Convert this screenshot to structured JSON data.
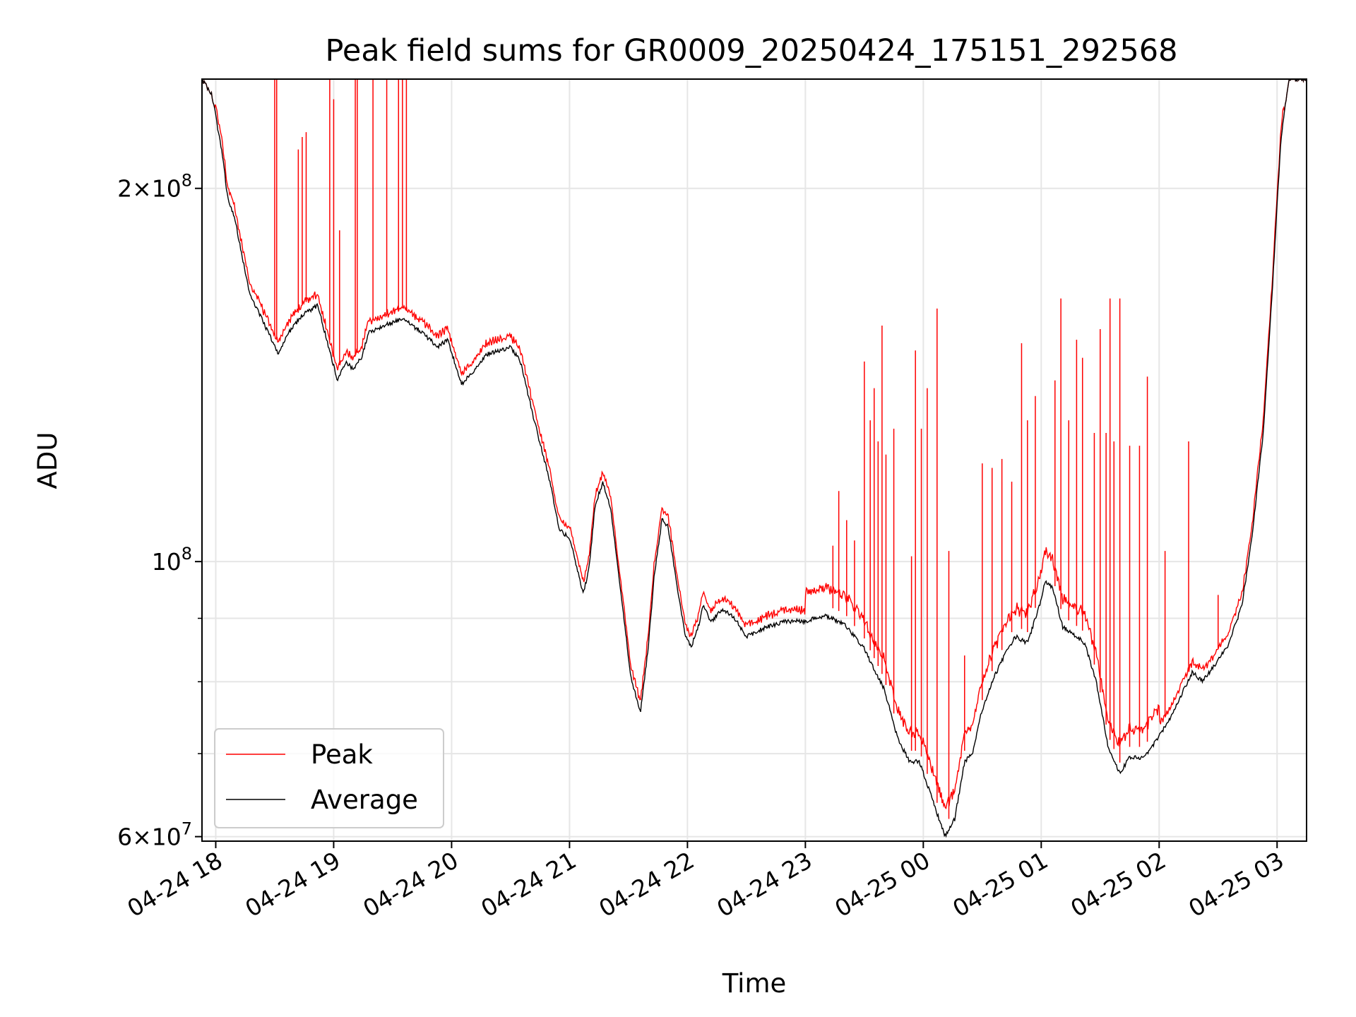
{
  "chart_data": {
    "type": "line",
    "title": "Peak field sums for GR0009_20250424_175151_292568",
    "xlabel": "Time",
    "ylabel": "ADU",
    "yscale": "log",
    "grid": true,
    "legend_loc": "lower left",
    "xlim": [
      "2025-04-24 17:53",
      "2025-04-25 03:15"
    ],
    "ylim": [
      59500000,
      245000000
    ],
    "x_ticks": [
      "04-24 18",
      "04-24 19",
      "04-24 20",
      "04-24 21",
      "04-24 22",
      "04-24 23",
      "04-25 00",
      "04-25 01",
      "04-25 02",
      "04-25 03"
    ],
    "y_tick_labels": [
      {
        "value": 60000000,
        "mantissa": "6",
        "base": "10",
        "exponent": "7"
      },
      {
        "value": 100000000,
        "mantissa": "",
        "base": "10",
        "exponent": "8"
      },
      {
        "value": 200000000,
        "mantissa": "2",
        "base": "10",
        "exponent": "8"
      }
    ],
    "y_minor_ticks": [
      70000000,
      80000000,
      90000000
    ],
    "colors": {
      "peak": "#ff0000",
      "average": "#000000"
    },
    "series": [
      {
        "name": "Average",
        "color": "#000000",
        "points": [
          [
            "2025-04-24 17:53",
            245000000
          ],
          [
            "2025-04-24 17:58",
            238000000
          ],
          [
            "2025-04-24 18:03",
            215000000
          ],
          [
            "2025-04-24 18:06",
            197000000
          ],
          [
            "2025-04-24 18:10",
            188000000
          ],
          [
            "2025-04-24 18:17",
            165000000
          ],
          [
            "2025-04-24 18:25",
            155000000
          ],
          [
            "2025-04-24 18:32",
            147000000
          ],
          [
            "2025-04-24 18:37",
            153000000
          ],
          [
            "2025-04-24 18:44",
            158000000
          ],
          [
            "2025-04-24 18:52",
            161000000
          ],
          [
            "2025-04-24 18:56",
            152000000
          ],
          [
            "2025-04-24 19:02",
            140000000
          ],
          [
            "2025-04-24 19:06",
            145000000
          ],
          [
            "2025-04-24 19:10",
            143000000
          ],
          [
            "2025-04-24 19:14",
            146000000
          ],
          [
            "2025-04-24 19:18",
            153000000
          ],
          [
            "2025-04-24 19:25",
            155000000
          ],
          [
            "2025-04-24 19:35",
            157000000
          ],
          [
            "2025-04-24 19:45",
            153000000
          ],
          [
            "2025-04-24 19:53",
            149000000
          ],
          [
            "2025-04-24 19:58",
            151000000
          ],
          [
            "2025-04-24 20:05",
            139000000
          ],
          [
            "2025-04-24 20:12",
            143000000
          ],
          [
            "2025-04-24 20:18",
            147000000
          ],
          [
            "2025-04-24 20:25",
            148000000
          ],
          [
            "2025-04-24 20:30",
            149000000
          ],
          [
            "2025-04-24 20:35",
            145000000
          ],
          [
            "2025-04-24 20:42",
            130000000
          ],
          [
            "2025-04-24 20:50",
            116000000
          ],
          [
            "2025-04-24 20:55",
            106000000
          ],
          [
            "2025-04-24 21:00",
            104500000
          ],
          [
            "2025-04-24 21:03",
            100000000
          ],
          [
            "2025-04-24 21:07",
            94000000
          ],
          [
            "2025-04-24 21:10",
            99000000
          ],
          [
            "2025-04-24 21:13",
            111000000
          ],
          [
            "2025-04-24 21:17",
            116000000
          ],
          [
            "2025-04-24 21:21",
            110000000
          ],
          [
            "2025-04-24 21:26",
            95000000
          ],
          [
            "2025-04-24 21:31",
            81000000
          ],
          [
            "2025-04-24 21:36",
            75500000
          ],
          [
            "2025-04-24 21:40",
            85000000
          ],
          [
            "2025-04-24 21:43",
            97000000
          ],
          [
            "2025-04-24 21:47",
            108000000
          ],
          [
            "2025-04-24 21:50",
            107000000
          ],
          [
            "2025-04-24 21:55",
            95000000
          ],
          [
            "2025-04-24 21:59",
            87000000
          ],
          [
            "2025-04-24 22:02",
            85500000
          ],
          [
            "2025-04-24 22:05",
            88000000
          ],
          [
            "2025-04-24 22:08",
            92000000
          ],
          [
            "2025-04-24 22:12",
            89500000
          ],
          [
            "2025-04-24 22:18",
            91500000
          ],
          [
            "2025-04-24 22:24",
            90000000
          ],
          [
            "2025-04-24 22:30",
            87000000
          ],
          [
            "2025-04-24 22:40",
            88500000
          ],
          [
            "2025-04-24 22:50",
            89500000
          ],
          [
            "2025-04-24 23:00",
            89500000
          ],
          [
            "2025-04-24 23:10",
            90500000
          ],
          [
            "2025-04-24 23:20",
            89000000
          ],
          [
            "2025-04-24 23:30",
            85000000
          ],
          [
            "2025-04-24 23:40",
            79000000
          ],
          [
            "2025-04-24 23:47",
            72000000
          ],
          [
            "2025-04-24 23:53",
            69000000
          ],
          [
            "2025-04-24 23:58",
            69000000
          ],
          [
            "2025-04-25 00:05",
            64000000
          ],
          [
            "2025-04-25 00:11",
            60000000
          ],
          [
            "2025-04-25 00:16",
            62000000
          ],
          [
            "2025-04-25 00:21",
            69000000
          ],
          [
            "2025-04-25 00:25",
            70000000
          ],
          [
            "2025-04-25 00:29",
            75000000
          ],
          [
            "2025-04-25 00:35",
            80000000
          ],
          [
            "2025-04-25 00:42",
            84500000
          ],
          [
            "2025-04-25 00:47",
            87000000
          ],
          [
            "2025-04-25 00:53",
            86000000
          ],
          [
            "2025-04-25 00:59",
            92000000
          ],
          [
            "2025-04-25 01:02",
            96500000
          ],
          [
            "2025-04-25 01:06",
            95000000
          ],
          [
            "2025-04-25 01:11",
            88500000
          ],
          [
            "2025-04-25 01:16",
            87500000
          ],
          [
            "2025-04-25 01:22",
            86000000
          ],
          [
            "2025-04-25 01:28",
            80000000
          ],
          [
            "2025-04-25 01:34",
            71000000
          ],
          [
            "2025-04-25 01:40",
            67500000
          ],
          [
            "2025-04-25 01:45",
            69500000
          ],
          [
            "2025-04-25 01:52",
            69500000
          ],
          [
            "2025-04-25 01:58",
            71500000
          ],
          [
            "2025-04-25 02:05",
            74500000
          ],
          [
            "2025-04-25 02:12",
            78500000
          ],
          [
            "2025-04-25 02:17",
            81500000
          ],
          [
            "2025-04-25 02:22",
            80000000
          ],
          [
            "2025-04-25 02:27",
            82000000
          ],
          [
            "2025-04-25 02:35",
            85500000
          ],
          [
            "2025-04-25 02:42",
            92000000
          ],
          [
            "2025-04-25 02:47",
            104000000
          ],
          [
            "2025-04-25 02:53",
            127000000
          ],
          [
            "2025-04-25 02:57",
            160000000
          ],
          [
            "2025-04-25 03:02",
            220000000
          ],
          [
            "2025-04-25 03:06",
            245000000
          ],
          [
            "2025-04-25 03:15",
            245000000
          ]
        ]
      },
      {
        "name": "Peak",
        "color": "#ff0000",
        "baseline": "follows the Average series, about 1-3% above it, rising to about 4-6% above it between 04-24 23:00 and 04-25 02:00",
        "spikes": [
          [
            "2025-04-24 18:30",
            245000000
          ],
          [
            "2025-04-24 18:31",
            245000000
          ],
          [
            "2025-04-24 18:42",
            215000000
          ],
          [
            "2025-04-24 18:44",
            220000000
          ],
          [
            "2025-04-24 18:46",
            222000000
          ],
          [
            "2025-04-24 18:58",
            245000000
          ],
          [
            "2025-04-24 19:00",
            236000000
          ],
          [
            "2025-04-24 19:03",
            185000000
          ],
          [
            "2025-04-24 19:11",
            245000000
          ],
          [
            "2025-04-24 19:12",
            245000000
          ],
          [
            "2025-04-24 19:20",
            245000000
          ],
          [
            "2025-04-24 19:27",
            245000000
          ],
          [
            "2025-04-24 19:33",
            245000000
          ],
          [
            "2025-04-24 19:35",
            245000000
          ],
          [
            "2025-04-24 19:37",
            245000000
          ],
          [
            "2025-04-24 23:14",
            103000000
          ],
          [
            "2025-04-24 23:17",
            114000000
          ],
          [
            "2025-04-24 23:21",
            108000000
          ],
          [
            "2025-04-24 23:25",
            104000000
          ],
          [
            "2025-04-24 23:30",
            145000000
          ],
          [
            "2025-04-24 23:33",
            130000000
          ],
          [
            "2025-04-24 23:35",
            138000000
          ],
          [
            "2025-04-24 23:37",
            125000000
          ],
          [
            "2025-04-24 23:39",
            155000000
          ],
          [
            "2025-04-24 23:41",
            122000000
          ],
          [
            "2025-04-24 23:45",
            128000000
          ],
          [
            "2025-04-24 23:54",
            101000000
          ],
          [
            "2025-04-24 23:56",
            148000000
          ],
          [
            "2025-04-24 23:59",
            128000000
          ],
          [
            "2025-04-25 00:02",
            138000000
          ],
          [
            "2025-04-25 00:07",
            160000000
          ],
          [
            "2025-04-25 00:13",
            102000000
          ],
          [
            "2025-04-25 00:21",
            84000000
          ],
          [
            "2025-04-25 00:30",
            120000000
          ],
          [
            "2025-04-25 00:35",
            119000000
          ],
          [
            "2025-04-25 00:40",
            121000000
          ],
          [
            "2025-04-25 00:45",
            116000000
          ],
          [
            "2025-04-25 00:50",
            150000000
          ],
          [
            "2025-04-25 00:53",
            130000000
          ],
          [
            "2025-04-25 00:57",
            136000000
          ],
          [
            "2025-04-25 01:07",
            140000000
          ],
          [
            "2025-04-25 01:10",
            163000000
          ],
          [
            "2025-04-25 01:14",
            130000000
          ],
          [
            "2025-04-25 01:18",
            151000000
          ],
          [
            "2025-04-25 01:21",
            146000000
          ],
          [
            "2025-04-25 01:27",
            127000000
          ],
          [
            "2025-04-25 01:30",
            154000000
          ],
          [
            "2025-04-25 01:33",
            127000000
          ],
          [
            "2025-04-25 01:35",
            163000000
          ],
          [
            "2025-04-25 01:37",
            125000000
          ],
          [
            "2025-04-25 01:40",
            163000000
          ],
          [
            "2025-04-25 01:45",
            124000000
          ],
          [
            "2025-04-25 01:50",
            124000000
          ],
          [
            "2025-04-25 01:54",
            141000000
          ],
          [
            "2025-04-25 02:03",
            102000000
          ],
          [
            "2025-04-25 02:15",
            125000000
          ],
          [
            "2025-04-25 02:30",
            94000000
          ]
        ]
      }
    ]
  }
}
